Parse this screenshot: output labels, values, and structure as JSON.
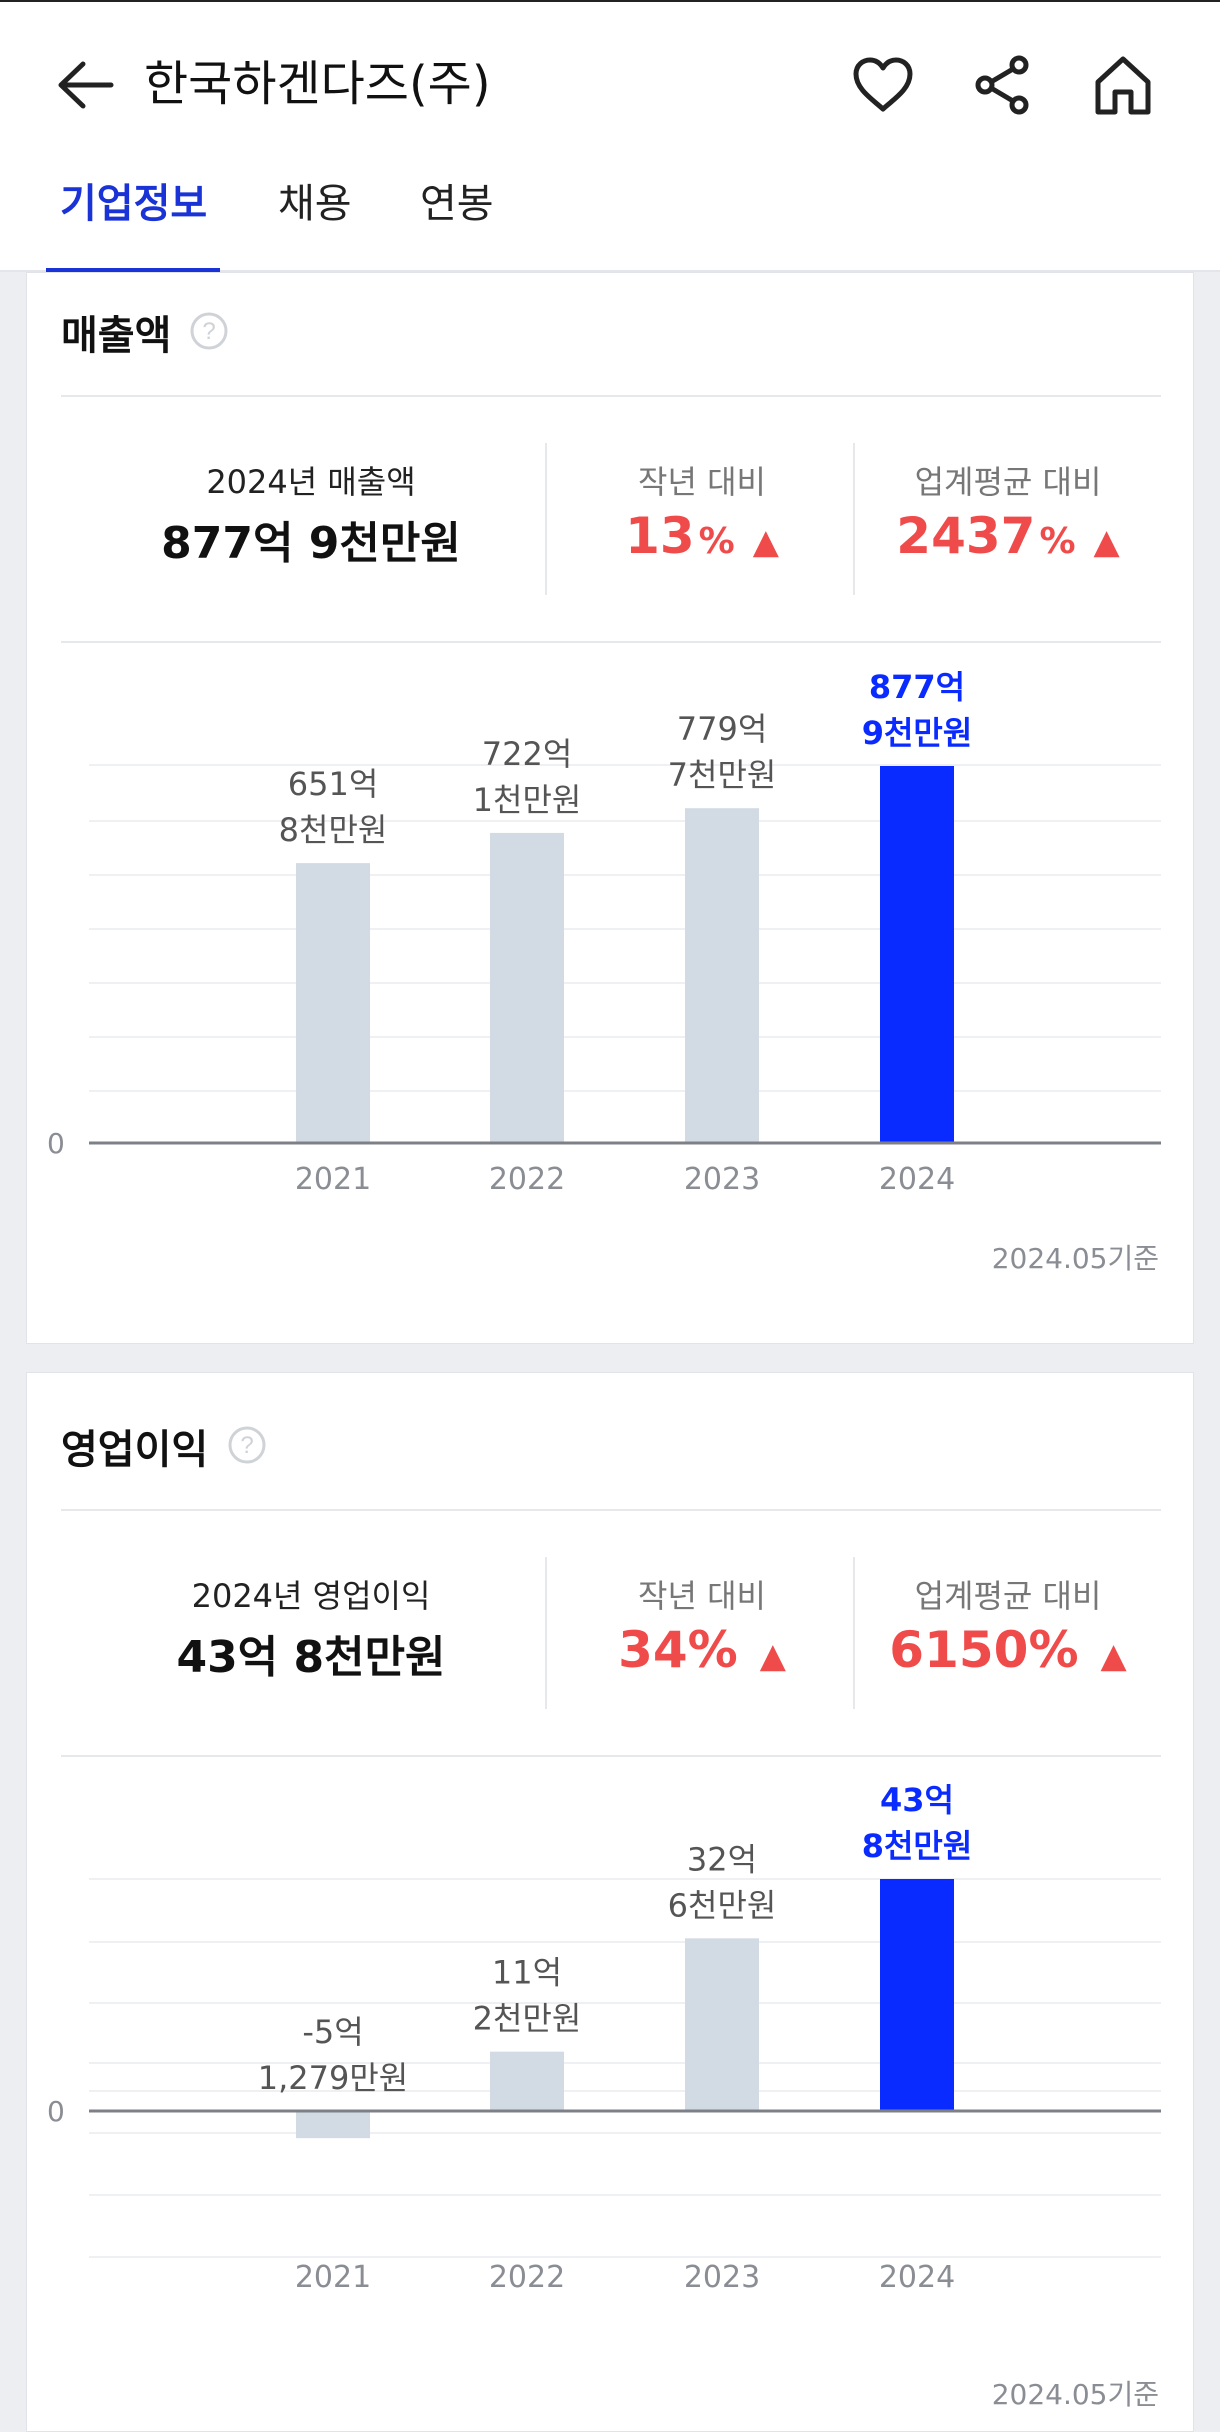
{
  "header": {
    "title": "한국하겐다즈(주)",
    "icons": [
      "back-arrow-icon",
      "heart-icon",
      "share-icon",
      "home-icon"
    ]
  },
  "tabs": [
    {
      "label": "기업정보",
      "active": true
    },
    {
      "label": "채용",
      "active": false
    },
    {
      "label": "연봉",
      "active": false
    }
  ],
  "colors": {
    "accent": "#1a33d6",
    "highlight_bar": "#0a2bff",
    "bar": "#d2dbe3",
    "increase": "#ef4b4b"
  },
  "revenue": {
    "title": "매출액",
    "stat_label": "2024년 매출액",
    "stat_value": "877억 9천만원",
    "yoy_label": "작년 대비",
    "yoy_value": "13",
    "yoy_unit": "%",
    "industry_label": "업계평균 대비",
    "industry_value": "2437",
    "industry_unit": "%",
    "basis": "2024.05기준"
  },
  "operating": {
    "title": "영업이익",
    "stat_label": "2024년 영업이익",
    "stat_value": "43억 8천만원",
    "yoy_label": "작년 대비",
    "yoy_value": "34%",
    "yoy_unit": "",
    "industry_label": "업계평균 대비",
    "industry_value": "6150%",
    "industry_unit": "",
    "basis": "2024.05기준"
  },
  "chart_data": [
    {
      "type": "bar",
      "categories": [
        "2021",
        "2022",
        "2023",
        "2024"
      ],
      "values": [
        651.8,
        722.1,
        779.7,
        877.9
      ],
      "value_labels": [
        [
          "651억",
          "8천만원"
        ],
        [
          "722억",
          "1천만원"
        ],
        [
          "779억",
          "7천만원"
        ],
        [
          "877억",
          "9천만원"
        ]
      ],
      "highlight_index": 3,
      "zero_label": "0",
      "ylim": [
        0,
        1000
      ],
      "grid": true
    },
    {
      "type": "bar",
      "categories": [
        "2021",
        "2022",
        "2023",
        "2024"
      ],
      "values": [
        -5.1279,
        11.2,
        32.6,
        43.8
      ],
      "value_labels": [
        [
          "-5억",
          "1,279만원"
        ],
        [
          "11억",
          "2천만원"
        ],
        [
          "32억",
          "6천만원"
        ],
        [
          "43억",
          "8천만원"
        ]
      ],
      "highlight_index": 3,
      "zero_label": "0",
      "ylim": [
        -20,
        45
      ],
      "grid": true
    }
  ]
}
